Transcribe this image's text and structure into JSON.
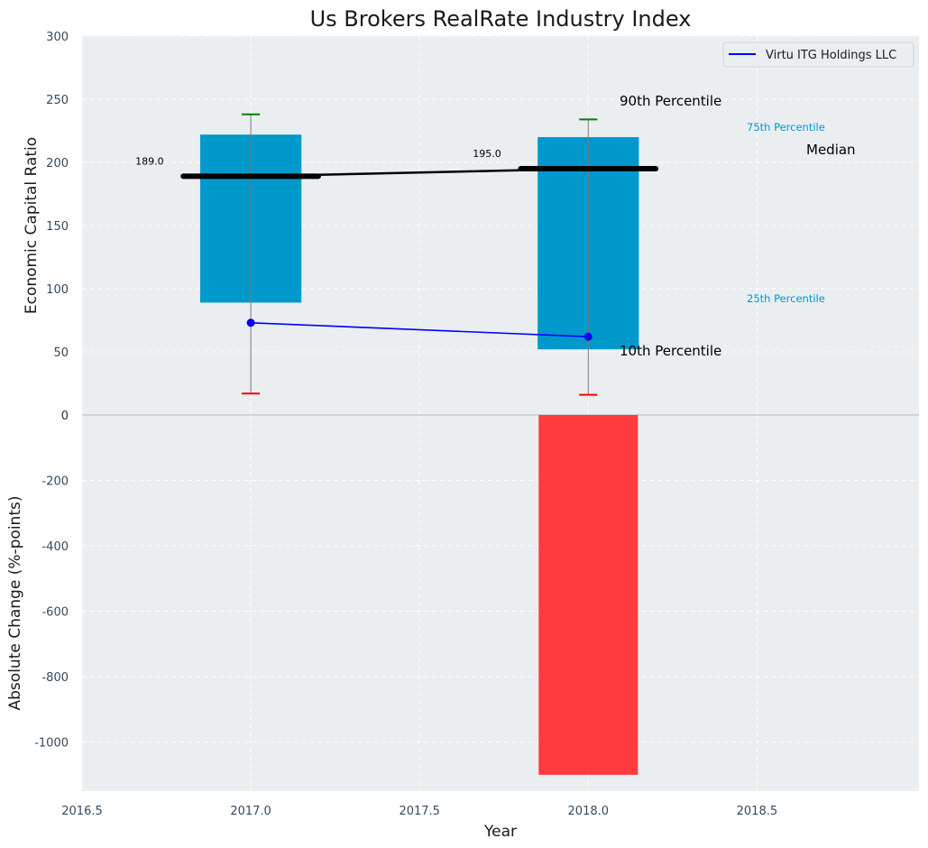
{
  "chart_data": [
    {
      "type": "bar",
      "panel": "top",
      "title": "Us Brokers RealRate Industry Index",
      "ylabel": "Economic Capital Ratio",
      "ylim": [
        0,
        300
      ],
      "yticks": [
        0,
        50,
        100,
        150,
        200,
        250,
        300
      ],
      "grid": true,
      "legend": {
        "position": "top-right",
        "entries": [
          "Virtu ITG Holdings LLC"
        ]
      },
      "boxes": [
        {
          "x": 2017.0,
          "p10": 17,
          "p25": 89,
          "median": 189,
          "p75": 222,
          "p90": 238
        },
        {
          "x": 2018.0,
          "p10": 16,
          "p25": 52,
          "median": 195,
          "p75": 220,
          "p90": 234
        }
      ],
      "median_labels": [
        "189.0",
        "195.0"
      ],
      "series": [
        {
          "name": "Virtu ITG Holdings LLC",
          "x": [
            2017.0,
            2018.0
          ],
          "values": [
            73,
            62
          ],
          "color": "#0000ff"
        }
      ],
      "annotations": {
        "p90": "90th Percentile",
        "p75": "75th Percentile",
        "median": "Median",
        "p25": "25th Percentile",
        "p10": "10th Percentile"
      }
    },
    {
      "type": "bar",
      "panel": "bottom",
      "xlabel": "Year",
      "ylabel": "Absolute Change (%-points)",
      "xlim": [
        2016.5,
        2018.98
      ],
      "xticks": [
        "2016.5",
        "2017.0",
        "2017.5",
        "2018.0",
        "2018.5"
      ],
      "ylim": [
        -1150,
        0
      ],
      "yticks": [
        0,
        -200,
        -400,
        -600,
        -800,
        -1000
      ],
      "grid": true,
      "x": [
        2018.0
      ],
      "values": [
        -1100
      ],
      "color": "#ff3b3f"
    }
  ],
  "colors": {
    "plot_bg": "#eaeef0",
    "box": "#0099cc",
    "median": "#000000",
    "p90_cap": "#008000",
    "p10_cap": "#ff0000",
    "label_75_25": "#0099cc",
    "negative_bar": "#ff3b3f"
  }
}
